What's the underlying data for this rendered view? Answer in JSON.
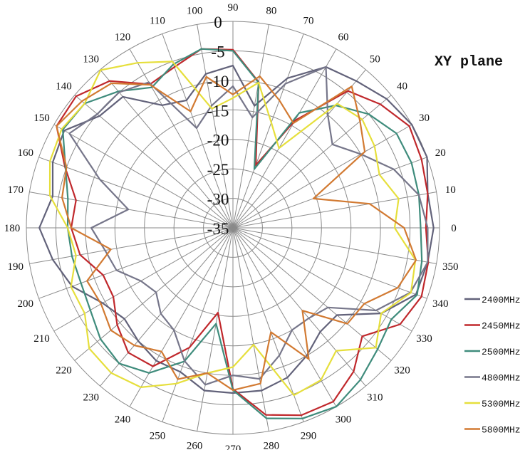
{
  "chart_data": {
    "type": "polar-line",
    "title": "XY plane",
    "angle_unit": "degrees",
    "angle_ticks": [
      0,
      10,
      20,
      30,
      40,
      50,
      60,
      70,
      80,
      90,
      100,
      110,
      120,
      130,
      140,
      150,
      160,
      170,
      180,
      190,
      200,
      210,
      220,
      230,
      240,
      250,
      260,
      270,
      280,
      290,
      300,
      310,
      320,
      330,
      340,
      350
    ],
    "radial_ticks": [
      0,
      -5,
      -10,
      -15,
      -20,
      -25,
      -30,
      -35
    ],
    "radial_range": [
      -35,
      0
    ],
    "grid": true,
    "legend_position": "right-bottom",
    "angles": [
      0,
      10,
      20,
      30,
      40,
      50,
      60,
      70,
      80,
      90,
      100,
      110,
      120,
      130,
      140,
      150,
      160,
      170,
      180,
      190,
      200,
      210,
      220,
      230,
      240,
      250,
      260,
      270,
      280,
      290,
      300,
      310,
      320,
      330,
      340,
      350
    ],
    "series": [
      {
        "name": "2400MHz",
        "color": "#62627a",
        "values": [
          -1,
          -1.5,
          0,
          0,
          -1,
          -2.5,
          -3.5,
          -8,
          -14,
          -7.5,
          -8.5,
          -12,
          -11,
          -6,
          -5.5,
          -2,
          -2.5,
          -4,
          -2.2,
          -4,
          -6,
          -9.5,
          -11,
          -10,
          -9,
          -9,
          -7,
          -7,
          -7,
          -8,
          -10,
          -12,
          -12,
          -6,
          -2,
          -1.5
        ]
      },
      {
        "name": "2450MHz",
        "color": "#c0282c",
        "values": [
          -2.3,
          -1.5,
          -1,
          -0.5,
          -2.4,
          -4.7,
          -14,
          -23.7,
          -9.9,
          -4.8,
          -4.2,
          -6,
          -6.9,
          -2.5,
          -0.3,
          -0.5,
          -4.7,
          -8,
          -7.6,
          -8.7,
          -11.6,
          -11.6,
          -9.4,
          -7.4,
          -7.9,
          -13.4,
          -20.4,
          -7.7,
          -2.8,
          -1.2,
          -1,
          -3.2,
          -6.4,
          -2.3,
          -1,
          -1.4
        ]
      },
      {
        "name": "2500MHz",
        "color": "#3f8c7c",
        "values": [
          -3.2,
          -3,
          -2.8,
          -3,
          -5,
          -7.9,
          -12.5,
          -24.4,
          -10,
          -5,
          -4.2,
          -5.5,
          -7.5,
          -4.8,
          -2.2,
          -1.7,
          -4.8,
          -6.6,
          -7,
          -7.3,
          -7.6,
          -7.1,
          -5.7,
          -5,
          -6.6,
          -10.9,
          -18.5,
          -7.5,
          -2.2,
          -0.6,
          0,
          -1.4,
          -3,
          -4,
          -1.8,
          -2.5
        ]
      },
      {
        "name": "4800MHz",
        "color": "#76768a",
        "values": [
          -2,
          -3,
          -6,
          -10,
          -13,
          -10,
          -3.5,
          -9,
          -16,
          -11,
          -14,
          -17,
          -6.5,
          -5,
          -5,
          -3,
          -11,
          -17,
          -11,
          -13,
          -14,
          -17,
          -18,
          -16,
          -15,
          -11,
          -8,
          -10,
          -9,
          -12,
          -15,
          -15,
          -14,
          -7,
          -3,
          -1.5
        ]
      },
      {
        "name": "5300MHz",
        "color": "#e6df3c",
        "values": [
          -7.6,
          -6.5,
          -8.6,
          -7.3,
          -6.4,
          -7.5,
          -19.4,
          -16,
          -10,
          -13,
          -14.5,
          -5,
          -2.7,
          -0.1,
          -2.2,
          -1.5,
          -2,
          -3.5,
          -7,
          -8,
          -5.8,
          -6,
          -3.2,
          -2.9,
          -3.8,
          -6.9,
          -10,
          -11.4,
          -14.9,
          -4.8,
          -5.2,
          -7.8,
          -3.4,
          -6,
          -2.9,
          -3.6
        ]
      },
      {
        "name": "5800MHz",
        "color": "#d27a32",
        "values": [
          -6,
          -11.5,
          -20.5,
          -9.2,
          -6.9,
          -3.7,
          -14.5,
          -12,
          -8.9,
          -12.4,
          -9,
          -14,
          -7,
          -3,
          -1.6,
          -0.5,
          -5,
          -5.6,
          -7.6,
          -14,
          -8.7,
          -9.2,
          -8,
          -9,
          -10.8,
          -7.7,
          -10,
          -7.5,
          -8.2,
          -16.2,
          -9.3,
          -16.7,
          -9.7,
          -9.3,
          -5.3,
          -3.5
        ]
      }
    ]
  }
}
